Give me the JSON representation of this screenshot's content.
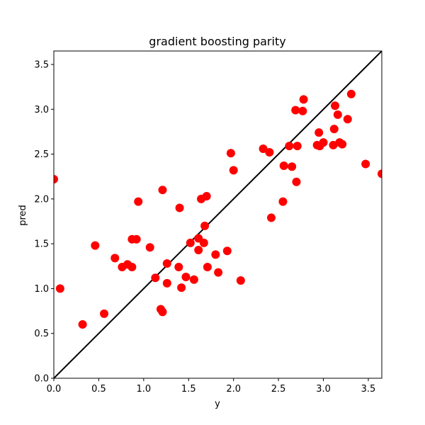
{
  "chart_data": {
    "type": "scatter",
    "title": "gradient boosting parity",
    "xlabel": "y",
    "ylabel": "pred",
    "xlim": [
      0,
      3.65
    ],
    "ylim": [
      0,
      3.65
    ],
    "xticks": [
      "0.0",
      "0.5",
      "1.0",
      "1.5",
      "2.0",
      "2.5",
      "3.0",
      "3.5"
    ],
    "yticks": [
      "0.0",
      "0.5",
      "1.0",
      "1.5",
      "2.0",
      "2.5",
      "3.0",
      "3.5"
    ],
    "grid": false,
    "point_color": "#ff0000",
    "line_color": "#000000",
    "reference_line": "y = x",
    "points": [
      [
        0.0,
        2.22
      ],
      [
        0.07,
        1.0
      ],
      [
        0.32,
        0.6
      ],
      [
        0.46,
        1.48
      ],
      [
        0.56,
        0.72
      ],
      [
        0.68,
        1.34
      ],
      [
        0.76,
        1.24
      ],
      [
        0.82,
        1.27
      ],
      [
        0.87,
        1.24
      ],
      [
        0.87,
        1.55
      ],
      [
        0.92,
        1.55
      ],
      [
        0.94,
        1.97
      ],
      [
        1.07,
        1.46
      ],
      [
        1.13,
        1.12
      ],
      [
        1.19,
        0.77
      ],
      [
        1.21,
        0.74
      ],
      [
        1.21,
        2.1
      ],
      [
        1.26,
        1.28
      ],
      [
        1.26,
        1.06
      ],
      [
        1.39,
        1.24
      ],
      [
        1.4,
        1.9
      ],
      [
        1.42,
        1.01
      ],
      [
        1.47,
        1.13
      ],
      [
        1.52,
        1.51
      ],
      [
        1.56,
        1.1
      ],
      [
        1.61,
        1.43
      ],
      [
        1.61,
        1.56
      ],
      [
        1.64,
        2.0
      ],
      [
        1.67,
        1.51
      ],
      [
        1.68,
        1.7
      ],
      [
        1.7,
        2.03
      ],
      [
        1.71,
        1.24
      ],
      [
        1.8,
        1.38
      ],
      [
        1.83,
        1.18
      ],
      [
        1.93,
        1.42
      ],
      [
        1.97,
        2.51
      ],
      [
        2.0,
        2.32
      ],
      [
        2.08,
        1.09
      ],
      [
        2.33,
        2.56
      ],
      [
        2.4,
        2.52
      ],
      [
        2.42,
        1.79
      ],
      [
        2.55,
        1.97
      ],
      [
        2.56,
        2.37
      ],
      [
        2.62,
        2.59
      ],
      [
        2.65,
        2.36
      ],
      [
        2.69,
        2.99
      ],
      [
        2.7,
        2.19
      ],
      [
        2.71,
        2.59
      ],
      [
        2.77,
        2.98
      ],
      [
        2.78,
        3.11
      ],
      [
        2.93,
        2.6
      ],
      [
        2.95,
        2.74
      ],
      [
        2.96,
        2.59
      ],
      [
        3.0,
        2.63
      ],
      [
        3.11,
        2.6
      ],
      [
        3.12,
        2.78
      ],
      [
        3.13,
        3.04
      ],
      [
        3.16,
        2.94
      ],
      [
        3.18,
        2.63
      ],
      [
        3.21,
        2.61
      ],
      [
        3.27,
        2.89
      ],
      [
        3.31,
        3.17
      ],
      [
        3.47,
        2.39
      ],
      [
        3.65,
        2.28
      ]
    ]
  }
}
